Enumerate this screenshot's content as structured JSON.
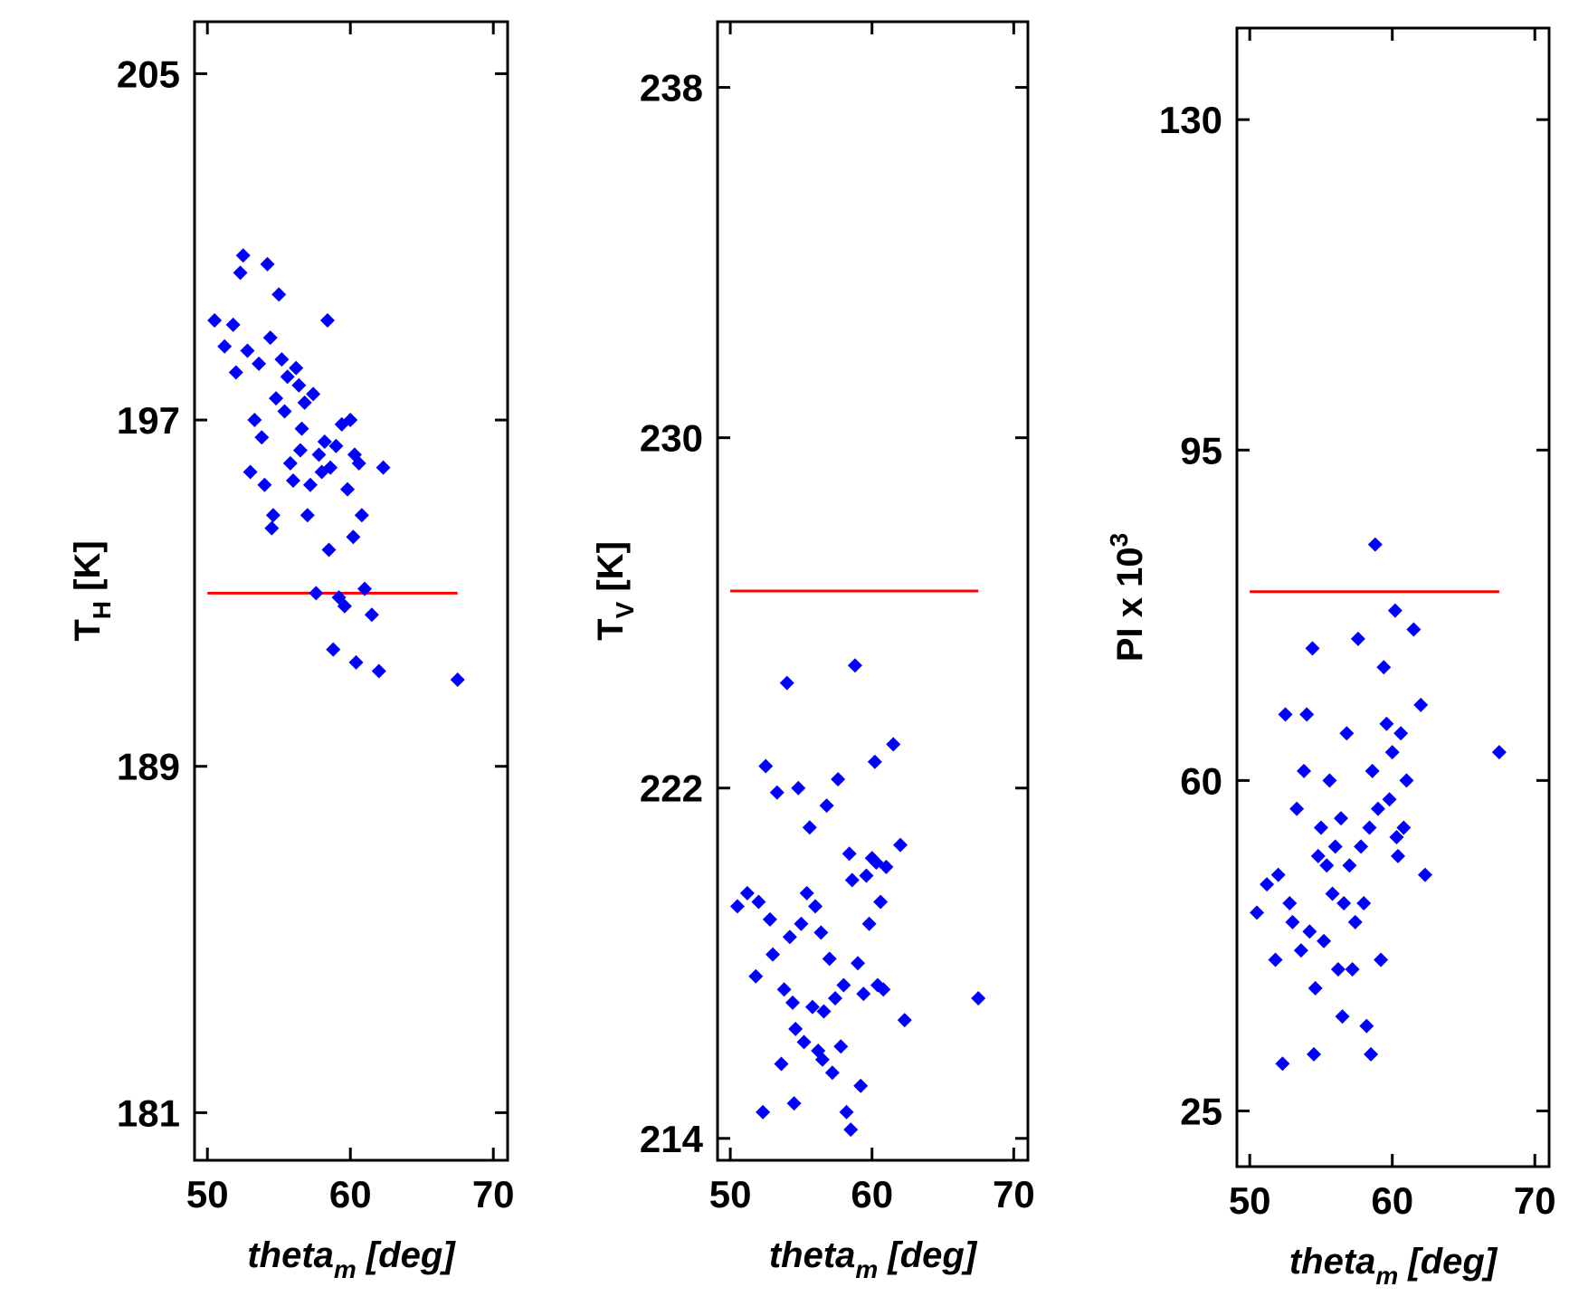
{
  "chart_data": [
    {
      "type": "scatter",
      "color": "#0000ff",
      "xlabel": {
        "text": "theta",
        "sub": "m",
        "rest": " [deg]"
      },
      "ylabel": {
        "text": "T",
        "sub": "H",
        "rest": " [K]"
      },
      "xlim": [
        49.1,
        71
      ],
      "xticks": [
        50,
        60,
        70
      ],
      "ylim": [
        179.9,
        206.2
      ],
      "yticks": [
        181,
        189,
        197,
        205
      ],
      "hline": {
        "y": 193,
        "x": [
          50,
          67.5
        ],
        "color": "#ff0000"
      },
      "x": [
        50.5,
        51.2,
        51.8,
        52.3,
        52.5,
        52.8,
        53.0,
        53.3,
        53.6,
        53.8,
        54.0,
        54.2,
        54.4,
        54.6,
        54.8,
        55.0,
        55.2,
        55.4,
        55.6,
        55.8,
        56.0,
        56.2,
        56.4,
        56.6,
        56.8,
        57.0,
        57.2,
        57.4,
        57.6,
        57.8,
        58.0,
        58.2,
        58.4,
        58.6,
        58.8,
        59.0,
        59.2,
        59.4,
        59.6,
        59.8,
        60.0,
        60.2,
        60.4,
        60.6,
        60.8,
        61.0,
        61.5,
        62.0,
        62.3,
        52.0,
        54.5,
        56.5,
        58.5,
        60.3,
        67.5
      ],
      "y": [
        199.3,
        198.7,
        199.2,
        200.4,
        200.8,
        198.6,
        195.8,
        197.0,
        198.3,
        196.6,
        195.5,
        200.6,
        198.9,
        194.8,
        197.5,
        199.9,
        198.4,
        197.2,
        198.0,
        196.0,
        195.6,
        198.2,
        197.8,
        196.8,
        197.4,
        194.8,
        195.5,
        197.6,
        193.0,
        196.2,
        195.8,
        196.5,
        199.3,
        195.9,
        191.7,
        196.4,
        192.9,
        196.9,
        192.7,
        195.4,
        197.0,
        194.3,
        191.4,
        196.0,
        194.8,
        193.1,
        192.5,
        191.2,
        195.9,
        198.1,
        194.5,
        196.3,
        194.0,
        196.2,
        191.0
      ]
    },
    {
      "type": "scatter",
      "color": "#0000ff",
      "xlabel": {
        "text": "theta",
        "sub": "m",
        "rest": " [deg]"
      },
      "ylabel": {
        "text": "T",
        "sub": "V",
        "rest": " [K]"
      },
      "xlim": [
        49.1,
        71
      ],
      "xticks": [
        50,
        60,
        70
      ],
      "ylim": [
        213.5,
        239.5
      ],
      "yticks": [
        214,
        222,
        230,
        238
      ],
      "hline": {
        "y": 226.5,
        "x": [
          50,
          67.5
        ],
        "color": "#ff0000"
      },
      "x": [
        50.5,
        51.2,
        51.8,
        52.3,
        52.5,
        52.8,
        53.0,
        53.3,
        53.6,
        53.8,
        54.0,
        54.2,
        54.4,
        54.6,
        54.8,
        55.0,
        55.2,
        55.4,
        55.6,
        55.8,
        56.0,
        56.2,
        56.4,
        56.6,
        56.8,
        57.0,
        57.2,
        57.4,
        57.6,
        57.8,
        58.0,
        58.2,
        58.4,
        58.6,
        58.8,
        59.0,
        59.2,
        59.4,
        59.6,
        59.8,
        60.0,
        60.2,
        60.4,
        60.6,
        60.8,
        61.0,
        61.5,
        62.0,
        62.3,
        52.0,
        54.5,
        56.5,
        58.5,
        60.3,
        67.5
      ],
      "y": [
        219.3,
        219.6,
        217.7,
        214.6,
        222.5,
        219.0,
        218.2,
        221.9,
        215.7,
        217.4,
        224.4,
        218.6,
        217.1,
        216.5,
        222.0,
        218.9,
        216.2,
        219.6,
        221.1,
        217.0,
        219.3,
        216.0,
        218.7,
        216.9,
        221.6,
        218.1,
        215.5,
        217.2,
        222.2,
        216.1,
        217.5,
        214.6,
        220.5,
        219.9,
        224.8,
        218.0,
        215.2,
        217.3,
        220.0,
        218.9,
        220.4,
        222.6,
        217.5,
        219.4,
        217.4,
        220.2,
        223.0,
        220.7,
        216.7,
        219.4,
        214.8,
        215.8,
        214.2,
        220.3,
        217.2
      ]
    },
    {
      "type": "scatter",
      "color": "#0000ff",
      "xlabel": {
        "text": "theta",
        "sub": "m",
        "rest": " [deg]"
      },
      "ylabel": {
        "text": "PI x 10",
        "sup": "3"
      },
      "xlim": [
        49.1,
        71
      ],
      "xticks": [
        50,
        60,
        70
      ],
      "ylim": [
        19.1,
        139.7
      ],
      "yticks": [
        25,
        60,
        95,
        130
      ],
      "hline": {
        "y": 80,
        "x": [
          50,
          67.5
        ],
        "color": "#ff0000"
      },
      "x": [
        50.5,
        51.2,
        51.8,
        52.3,
        52.5,
        52.8,
        53.0,
        53.3,
        53.6,
        53.8,
        54.0,
        54.2,
        54.4,
        54.6,
        54.8,
        55.0,
        55.2,
        55.4,
        55.6,
        55.8,
        56.0,
        56.2,
        56.4,
        56.6,
        56.8,
        57.0,
        57.2,
        57.4,
        57.6,
        57.8,
        58.0,
        58.2,
        58.4,
        58.6,
        58.8,
        59.0,
        59.2,
        59.4,
        59.6,
        59.8,
        60.0,
        60.2,
        60.4,
        60.6,
        60.8,
        61.0,
        61.5,
        62.0,
        62.3,
        52.0,
        54.5,
        56.5,
        58.5,
        60.3,
        67.5
      ],
      "y": [
        46,
        49,
        41,
        30,
        67,
        47,
        45,
        57,
        42,
        61,
        67,
        44,
        74,
        38,
        52,
        55,
        43,
        51,
        60,
        48,
        53,
        40,
        56,
        47,
        65,
        51,
        40,
        45,
        75,
        53,
        47,
        34,
        55,
        61,
        85,
        57,
        41,
        72,
        66,
        58,
        63,
        78,
        52,
        65,
        55,
        60,
        76,
        68,
        50,
        50,
        31,
        35,
        31,
        54,
        63
      ]
    }
  ]
}
